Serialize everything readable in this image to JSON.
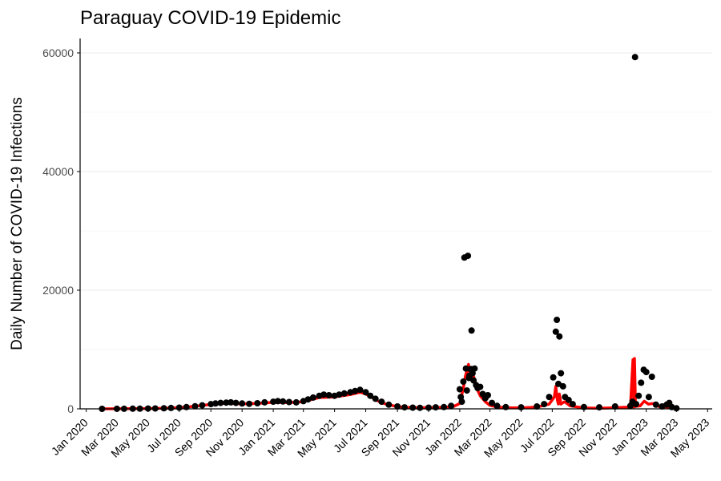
{
  "chart_data": {
    "type": "scatter",
    "title": "Paraguay COVID-19 Epidemic",
    "xlabel": "",
    "ylabel": "Daily Number of COVID-19 Infections",
    "ylim": [
      0,
      60000
    ],
    "xlim": [
      "2019-12-20",
      "2023-05-10"
    ],
    "y_ticks": [
      0,
      20000,
      40000,
      60000
    ],
    "y_tick_labels": [
      "0",
      "20000",
      "40000",
      "60000"
    ],
    "x_ticks": [
      "2020-01-01",
      "2020-03-01",
      "2020-05-01",
      "2020-07-01",
      "2020-09-01",
      "2020-11-01",
      "2021-01-01",
      "2021-03-01",
      "2021-05-01",
      "2021-07-01",
      "2021-09-01",
      "2021-11-01",
      "2022-01-01",
      "2022-03-01",
      "2022-05-01",
      "2022-07-01",
      "2022-09-01",
      "2022-11-01",
      "2023-01-01",
      "2023-03-01",
      "2023-05-01"
    ],
    "x_tick_labels": [
      "Jan 2020",
      "Mar 2020",
      "May 2020",
      "Jul 2020",
      "Sep 2020",
      "Nov 2020",
      "Jan 2021",
      "Mar 2021",
      "May 2021",
      "Jul 2021",
      "Sep 2021",
      "Nov 2021",
      "Jan 2022",
      "Mar 2022",
      "May 2022",
      "Jul 2022",
      "Sep 2022",
      "Nov 2022",
      "Jan 2023",
      "Mar 2023",
      "May 2023"
    ],
    "grid": "horizontal",
    "series": [
      {
        "color": "#000000",
        "style": "points",
        "points": [
          [
            "2020-02-01",
            0
          ],
          [
            "2020-03-01",
            10
          ],
          [
            "2020-03-15",
            20
          ],
          [
            "2020-04-01",
            30
          ],
          [
            "2020-04-15",
            30
          ],
          [
            "2020-05-01",
            50
          ],
          [
            "2020-05-15",
            70
          ],
          [
            "2020-06-01",
            100
          ],
          [
            "2020-06-15",
            150
          ],
          [
            "2020-07-01",
            200
          ],
          [
            "2020-07-15",
            300
          ],
          [
            "2020-08-01",
            450
          ],
          [
            "2020-08-15",
            600
          ],
          [
            "2020-09-01",
            800
          ],
          [
            "2020-09-10",
            900
          ],
          [
            "2020-09-20",
            1000
          ],
          [
            "2020-10-01",
            1050
          ],
          [
            "2020-10-10",
            1100
          ],
          [
            "2020-10-20",
            1000
          ],
          [
            "2020-11-01",
            900
          ],
          [
            "2020-11-15",
            850
          ],
          [
            "2020-12-01",
            950
          ],
          [
            "2020-12-15",
            1100
          ],
          [
            "2021-01-01",
            1200
          ],
          [
            "2021-01-10",
            1300
          ],
          [
            "2021-01-20",
            1250
          ],
          [
            "2021-02-01",
            1150
          ],
          [
            "2021-02-15",
            1100
          ],
          [
            "2021-03-01",
            1300
          ],
          [
            "2021-03-10",
            1600
          ],
          [
            "2021-03-20",
            1900
          ],
          [
            "2021-04-01",
            2200
          ],
          [
            "2021-04-10",
            2400
          ],
          [
            "2021-04-20",
            2300
          ],
          [
            "2021-05-01",
            2200
          ],
          [
            "2021-05-10",
            2400
          ],
          [
            "2021-05-20",
            2600
          ],
          [
            "2021-06-01",
            2800
          ],
          [
            "2021-06-10",
            3000
          ],
          [
            "2021-06-20",
            3200
          ],
          [
            "2021-07-01",
            2800
          ],
          [
            "2021-07-10",
            2200
          ],
          [
            "2021-07-20",
            1700
          ],
          [
            "2021-08-01",
            1200
          ],
          [
            "2021-08-15",
            700
          ],
          [
            "2021-09-01",
            400
          ],
          [
            "2021-09-15",
            250
          ],
          [
            "2021-10-01",
            200
          ],
          [
            "2021-10-15",
            180
          ],
          [
            "2021-11-01",
            200
          ],
          [
            "2021-11-15",
            250
          ],
          [
            "2021-12-01",
            300
          ],
          [
            "2021-12-15",
            500
          ],
          [
            "2022-01-01",
            3300
          ],
          [
            "2022-01-03",
            2000
          ],
          [
            "2022-01-05",
            1200
          ],
          [
            "2022-01-08",
            4600
          ],
          [
            "2022-01-10",
            25500
          ],
          [
            "2022-01-13",
            6800
          ],
          [
            "2022-01-15",
            3100
          ],
          [
            "2022-01-17",
            25800
          ],
          [
            "2022-01-19",
            5200
          ],
          [
            "2022-01-20",
            5600
          ],
          [
            "2022-01-22",
            6700
          ],
          [
            "2022-01-24",
            13200
          ],
          [
            "2022-01-26",
            6000
          ],
          [
            "2022-01-28",
            4800
          ],
          [
            "2022-01-30",
            6800
          ],
          [
            "2022-02-02",
            4000
          ],
          [
            "2022-02-05",
            3500
          ],
          [
            "2022-02-10",
            3700
          ],
          [
            "2022-02-15",
            2500
          ],
          [
            "2022-02-20",
            1800
          ],
          [
            "2022-02-25",
            2300
          ],
          [
            "2022-03-05",
            1000
          ],
          [
            "2022-03-15",
            500
          ],
          [
            "2022-04-01",
            300
          ],
          [
            "2022-05-01",
            250
          ],
          [
            "2022-06-01",
            400
          ],
          [
            "2022-06-15",
            800
          ],
          [
            "2022-06-25",
            2000
          ],
          [
            "2022-07-03",
            5300
          ],
          [
            "2022-07-08",
            13000
          ],
          [
            "2022-07-10",
            15000
          ],
          [
            "2022-07-13",
            4200
          ],
          [
            "2022-07-15",
            12200
          ],
          [
            "2022-07-18",
            6000
          ],
          [
            "2022-07-22",
            3800
          ],
          [
            "2022-07-26",
            2000
          ],
          [
            "2022-08-02",
            1500
          ],
          [
            "2022-08-10",
            800
          ],
          [
            "2022-09-01",
            300
          ],
          [
            "2022-10-01",
            250
          ],
          [
            "2022-11-01",
            400
          ],
          [
            "2022-12-01",
            500
          ],
          [
            "2022-12-05",
            1200
          ],
          [
            "2022-12-10",
            59300
          ],
          [
            "2022-12-12",
            800
          ],
          [
            "2022-12-17",
            2200
          ],
          [
            "2022-12-22",
            4400
          ],
          [
            "2022-12-27",
            6600
          ],
          [
            "2023-01-01",
            6200
          ],
          [
            "2023-01-06",
            2000
          ],
          [
            "2023-01-12",
            5400
          ],
          [
            "2023-01-20",
            700
          ],
          [
            "2023-02-01",
            400
          ],
          [
            "2023-02-10",
            700
          ],
          [
            "2023-02-15",
            1000
          ],
          [
            "2023-02-20",
            300
          ],
          [
            "2023-03-01",
            100
          ]
        ]
      },
      {
        "color": "#ff0000",
        "style": "line",
        "points": [
          [
            "2020-02-01",
            0
          ],
          [
            "2020-03-01",
            10
          ],
          [
            "2020-04-01",
            30
          ],
          [
            "2020-05-01",
            50
          ],
          [
            "2020-06-01",
            100
          ],
          [
            "2020-07-01",
            200
          ],
          [
            "2020-08-01",
            450
          ],
          [
            "2020-09-01",
            750
          ],
          [
            "2020-10-01",
            950
          ],
          [
            "2020-11-01",
            850
          ],
          [
            "2020-12-01",
            900
          ],
          [
            "2021-01-01",
            1100
          ],
          [
            "2021-02-01",
            1050
          ],
          [
            "2021-03-01",
            1200
          ],
          [
            "2021-04-01",
            1900
          ],
          [
            "2021-05-01",
            2000
          ],
          [
            "2021-06-01",
            2400
          ],
          [
            "2021-06-20",
            2800
          ],
          [
            "2021-07-01",
            2500
          ],
          [
            "2021-08-01",
            1000
          ],
          [
            "2021-09-01",
            350
          ],
          [
            "2021-10-01",
            200
          ],
          [
            "2021-11-01",
            200
          ],
          [
            "2021-12-01",
            250
          ],
          [
            "2021-12-20",
            400
          ],
          [
            "2022-01-01",
            900
          ],
          [
            "2022-01-08",
            3500
          ],
          [
            "2022-01-12",
            5500
          ],
          [
            "2022-01-16",
            6800
          ],
          [
            "2022-01-18",
            7500
          ],
          [
            "2022-01-20",
            6200
          ],
          [
            "2022-01-24",
            7000
          ],
          [
            "2022-01-28",
            5500
          ],
          [
            "2022-02-03",
            3500
          ],
          [
            "2022-02-10",
            2200
          ],
          [
            "2022-02-20",
            1200
          ],
          [
            "2022-03-01",
            600
          ],
          [
            "2022-03-15",
            300
          ],
          [
            "2022-04-01",
            200
          ],
          [
            "2022-05-01",
            150
          ],
          [
            "2022-06-01",
            300
          ],
          [
            "2022-06-25",
            800
          ],
          [
            "2022-07-05",
            2000
          ],
          [
            "2022-07-08",
            3800
          ],
          [
            "2022-07-11",
            1500
          ],
          [
            "2022-07-13",
            800
          ],
          [
            "2022-07-15",
            2500
          ],
          [
            "2022-07-18",
            800
          ],
          [
            "2022-07-25",
            1200
          ],
          [
            "2022-08-05",
            500
          ],
          [
            "2022-09-01",
            150
          ],
          [
            "2022-10-01",
            100
          ],
          [
            "2022-11-01",
            200
          ],
          [
            "2022-12-01",
            300
          ],
          [
            "2022-12-06",
            8300
          ],
          [
            "2022-12-08",
            300
          ],
          [
            "2022-12-09",
            8500
          ],
          [
            "2022-12-11",
            400
          ],
          [
            "2022-12-20",
            500
          ],
          [
            "2022-12-28",
            1300
          ],
          [
            "2023-01-05",
            800
          ],
          [
            "2023-01-15",
            900
          ],
          [
            "2023-01-25",
            400
          ],
          [
            "2023-02-10",
            300
          ],
          [
            "2023-03-01",
            100
          ]
        ]
      }
    ]
  }
}
